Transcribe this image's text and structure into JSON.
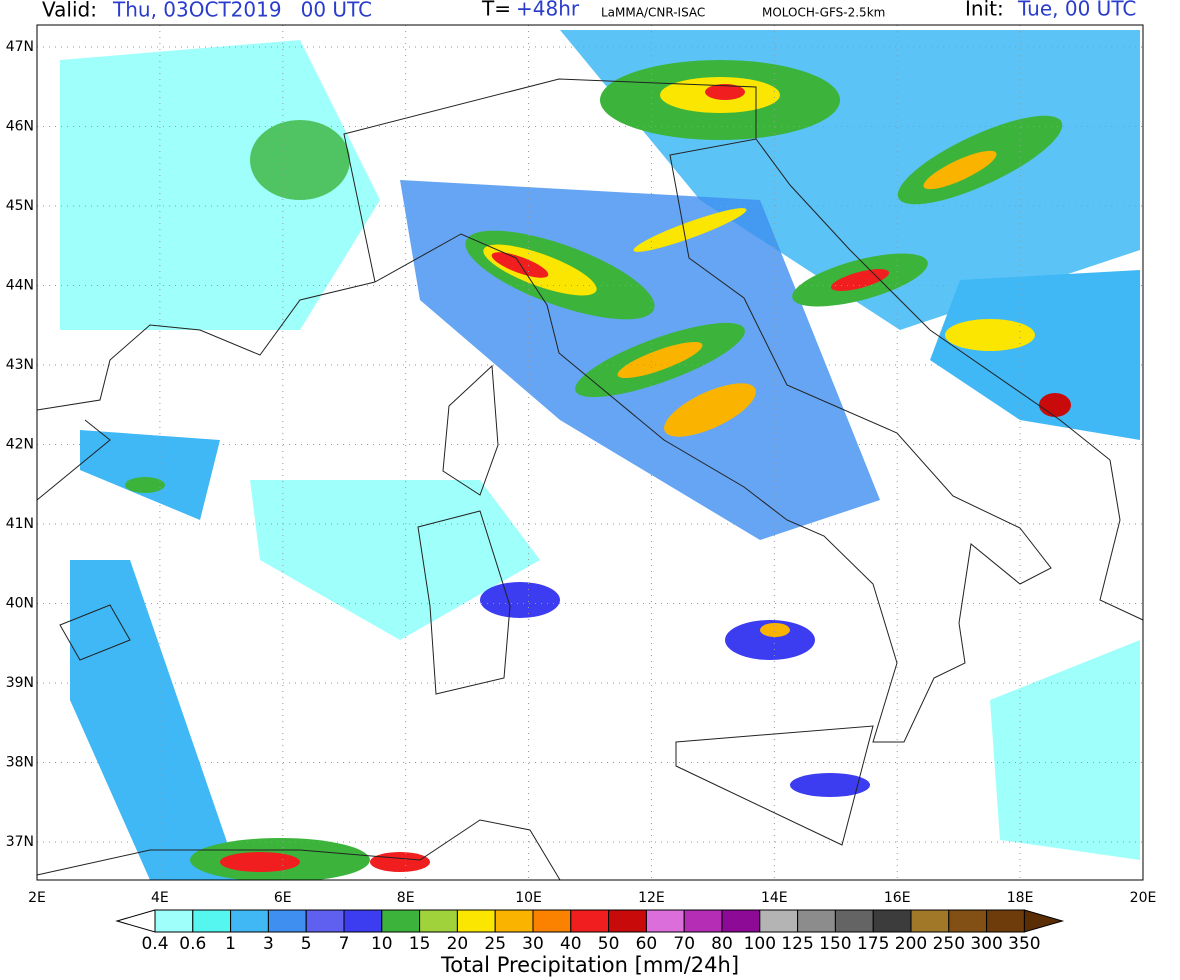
{
  "header": {
    "valid_label": "Valid:",
    "valid_value": "Thu, 03OCT2019   00 UTC",
    "forecast_label": "T=",
    "forecast_value": "+48hr",
    "source": "LaMMA/CNR-ISAC",
    "model": "MOLOCH-GFS-2.5km",
    "init_label": "Init:",
    "init_value": "Tue, 00 UTC"
  },
  "map": {
    "lat_labels": [
      "47N",
      "46N",
      "45N",
      "44N",
      "43N",
      "42N",
      "41N",
      "40N",
      "39N",
      "38N",
      "37N"
    ],
    "lon_labels": [
      "2E",
      "4E",
      "6E",
      "8E",
      "10E",
      "12E",
      "14E",
      "16E",
      "18E",
      "20E"
    ]
  },
  "colorbar": {
    "title": "Total Precipitation [mm/24h]",
    "levels": [
      "0.4",
      "0.6",
      "1",
      "3",
      "5",
      "7",
      "10",
      "15",
      "20",
      "25",
      "30",
      "40",
      "50",
      "60",
      "70",
      "80",
      "100",
      "125",
      "150",
      "175",
      "200",
      "250",
      "300",
      "350"
    ],
    "under_color": "#ffffff",
    "colors": [
      "#9ffffa",
      "#55f5f0",
      "#3fb8f5",
      "#3f8ff0",
      "#6060f0",
      "#3c3cf0",
      "#3cb43c",
      "#a0d23c",
      "#fae600",
      "#fab400",
      "#fa8200",
      "#f01e1e",
      "#c80a0a",
      "#dc6edc",
      "#b42db4",
      "#8c0a96",
      "#b4b4b4",
      "#8c8c8c",
      "#646464",
      "#3c3c3c",
      "#a07828",
      "#824f14",
      "#6e3c0a"
    ],
    "over_color": "#5a2d05"
  }
}
